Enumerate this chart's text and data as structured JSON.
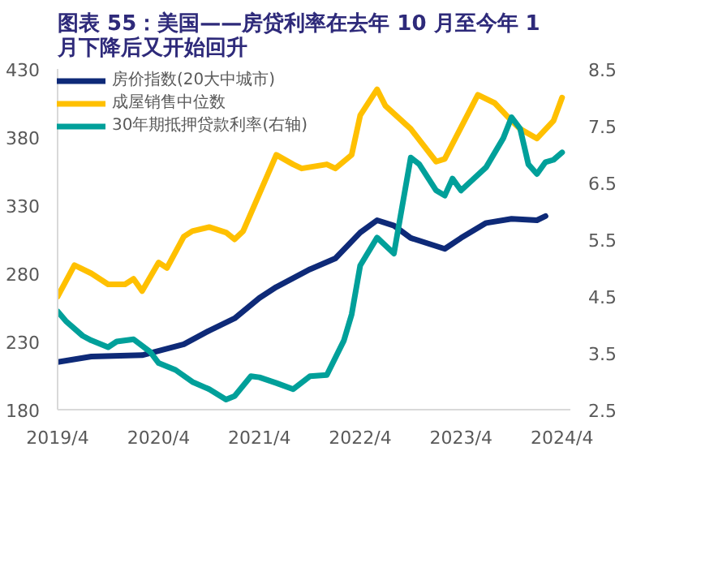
{
  "chart_data": {
    "type": "line",
    "title": "图表 55：美国——房贷利率在去年 10 月至今年 1 月下降后又开始回升",
    "xlim": [
      "2019-04-01",
      "2024-05-01"
    ],
    "xticks": [
      {
        "value": "2019-04-01",
        "label": "2019/4"
      },
      {
        "value": "2020-04-01",
        "label": "2020/4"
      },
      {
        "value": "2021-04-01",
        "label": "2021/4"
      },
      {
        "value": "2022-04-01",
        "label": "2022/4"
      },
      {
        "value": "2023-04-01",
        "label": "2023/4"
      },
      {
        "value": "2024-04-01",
        "label": "2024/4"
      }
    ],
    "ylim": [
      180,
      430
    ],
    "yticks": [
      180,
      230,
      280,
      330,
      380,
      430
    ],
    "y2lim": [
      2.5,
      8.5
    ],
    "y2ticks": [
      {
        "value": 2.5,
        "label": "2.5"
      },
      {
        "value": 3.5,
        "label": "3.5"
      },
      {
        "value": 4.5,
        "label": "4.5"
      },
      {
        "value": 5.5,
        "label": "5.5"
      },
      {
        "value": 6.5,
        "label": "6.5"
      },
      {
        "value": 7.5,
        "label": "7.5"
      },
      {
        "value": 8.5,
        "label": "8.5"
      }
    ],
    "grid": false,
    "legend": "top left",
    "marker": "none",
    "line_style": "solid",
    "series": [
      {
        "name": "房价指数(20大中城市)",
        "color": "#0e2a78",
        "x": [
          "2019-04",
          "2019-08",
          "2020-02",
          "2020-07",
          "2020-10",
          "2021-01",
          "2021-04",
          "2021-06",
          "2021-10",
          "2022-01",
          "2022-04",
          "2022-06",
          "2022-08",
          "2022-10",
          "2023-02",
          "2023-04",
          "2023-07",
          "2023-10",
          "2024-01",
          "2024-02"
        ],
        "values": [
          215,
          219,
          220,
          228,
          238,
          247,
          262,
          270,
          283,
          291,
          310,
          319,
          315,
          306,
          298,
          306,
          317,
          320,
          319,
          322
        ]
      },
      {
        "name": "成屋销售中位数",
        "color": "#ffc000",
        "x": [
          "2019-04",
          "2019-06",
          "2019-08",
          "2019-10",
          "2019-12",
          "2020-01",
          "2020-02",
          "2020-04",
          "2020-05",
          "2020-07",
          "2020-08",
          "2020-10",
          "2020-12",
          "2021-01",
          "2021-02",
          "2021-06",
          "2021-08",
          "2021-09",
          "2021-12",
          "2022-01",
          "2022-03",
          "2022-04",
          "2022-06",
          "2022-07",
          "2022-10",
          "2023-01",
          "2023-02",
          "2023-06",
          "2023-08",
          "2023-10",
          "2023-11",
          "2024-01",
          "2024-03",
          "2024-04"
        ],
        "values": [
          263,
          286,
          280,
          272,
          272,
          276,
          267,
          288,
          284,
          307,
          311,
          314,
          310,
          305,
          311,
          367,
          360,
          357,
          360,
          357,
          367,
          396,
          415,
          403,
          386,
          362,
          364,
          411,
          405,
          392,
          386,
          379,
          392,
          409
        ]
      },
      {
        "name": "30年期抵押贷款利率(右轴)",
        "color": "#00a09a",
        "axis": "y2",
        "x": [
          "2019-04",
          "2019-05",
          "2019-07",
          "2019-08",
          "2019-10",
          "2019-11",
          "2020-01",
          "2020-03",
          "2020-04",
          "2020-06",
          "2020-08",
          "2020-10",
          "2020-12",
          "2021-01",
          "2021-03",
          "2021-04",
          "2021-06",
          "2021-08",
          "2021-10",
          "2021-12",
          "2022-02",
          "2022-03",
          "2022-04",
          "2022-06",
          "2022-08",
          "2022-10",
          "2022-11",
          "2023-01",
          "2023-02",
          "2023-03",
          "2023-04",
          "2023-07",
          "2023-09",
          "2023-10",
          "2023-11",
          "2023-12",
          "2024-01",
          "2024-02",
          "2024-03",
          "2024-04"
        ],
        "values": [
          4.23,
          4.06,
          3.8,
          3.72,
          3.6,
          3.7,
          3.74,
          3.52,
          3.32,
          3.2,
          2.99,
          2.86,
          2.68,
          2.74,
          3.09,
          3.07,
          2.97,
          2.86,
          3.09,
          3.11,
          3.72,
          4.18,
          5.04,
          5.53,
          5.25,
          6.94,
          6.82,
          6.36,
          6.27,
          6.57,
          6.36,
          6.77,
          7.28,
          7.65,
          7.45,
          6.82,
          6.65,
          6.86,
          6.9,
          7.03
        ]
      }
    ]
  }
}
